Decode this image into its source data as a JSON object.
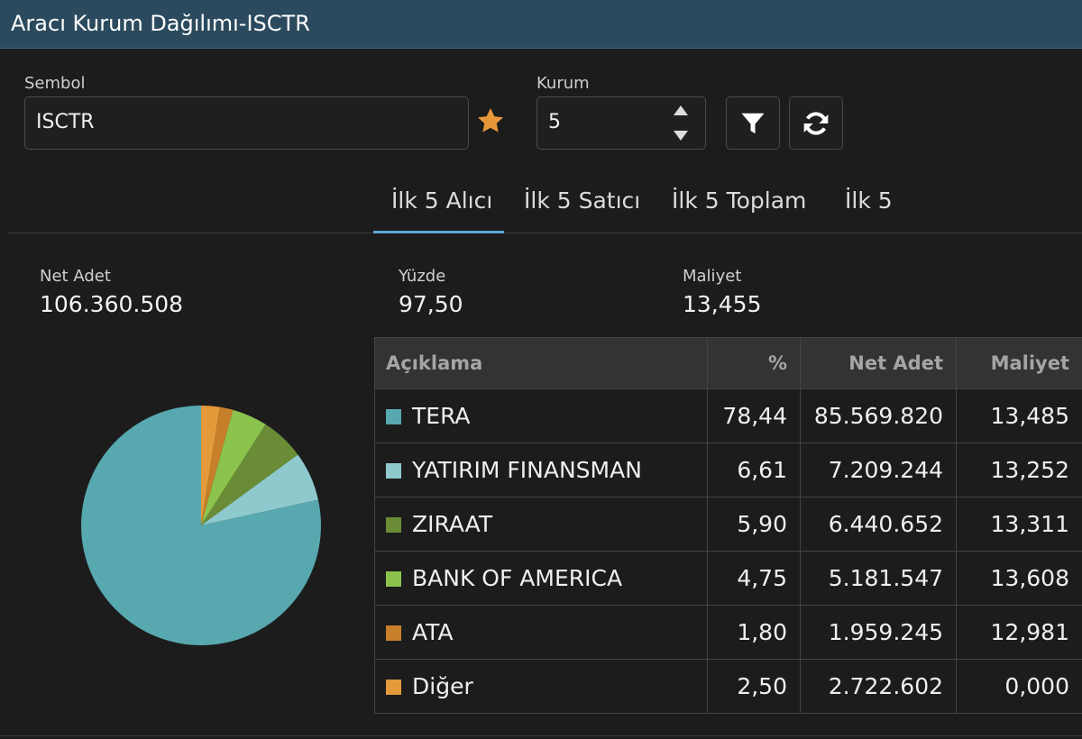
{
  "window": {
    "title": "Aracı Kurum Dağılımı-ISCTR"
  },
  "filters": {
    "symbol_label": "Sembol",
    "symbol_value": "ISCTR",
    "kurum_label": "Kurum",
    "kurum_value": "5"
  },
  "tabs": [
    {
      "label": "İlk 5 Alıcı",
      "active": true
    },
    {
      "label": "İlk 5 Satıcı",
      "active": false
    },
    {
      "label": "İlk 5 Toplam",
      "active": false
    },
    {
      "label": "İlk 5",
      "active": false
    }
  ],
  "summary": {
    "net_adet_label": "Net Adet",
    "net_adet_value": "106.360.508",
    "yuzde_label": "Yüzde",
    "yuzde_value": "97,50",
    "maliyet_label": "Maliyet",
    "maliyet_value": "13,455"
  },
  "table": {
    "headers": {
      "desc": "Açıklama",
      "pct": "%",
      "net": "Net Adet",
      "cost": "Maliyet"
    },
    "rows": [
      {
        "name": "TERA",
        "pct": "78,44",
        "net": "85.569.820",
        "cost": "13,485",
        "color": "#58a8af"
      },
      {
        "name": "YATIRIM FINANSMAN",
        "pct": "6,61",
        "net": "7.209.244",
        "cost": "13,252",
        "color": "#8ecacd"
      },
      {
        "name": "ZIRAAT",
        "pct": "5,90",
        "net": "6.440.652",
        "cost": "13,311",
        "color": "#6a8c36"
      },
      {
        "name": "BANK OF AMERICA",
        "pct": "4,75",
        "net": "5.181.547",
        "cost": "13,608",
        "color": "#8cc34d"
      },
      {
        "name": "ATA",
        "pct": "1,80",
        "net": "1.959.245",
        "cost": "12,981",
        "color": "#c87f2a"
      },
      {
        "name": "Diğer",
        "pct": "2,50",
        "net": "2.722.602",
        "cost": "0,000",
        "color": "#e29a3b"
      }
    ]
  },
  "chart_data": {
    "type": "pie",
    "categories": [
      "TERA",
      "YATIRIM FINANSMAN",
      "ZIRAAT",
      "BANK OF AMERICA",
      "ATA",
      "Diğer"
    ],
    "values": [
      78.44,
      6.61,
      5.9,
      4.75,
      1.8,
      2.5
    ],
    "colors": [
      "#58a8af",
      "#8ecacd",
      "#6a8c36",
      "#8cc34d",
      "#c87f2a",
      "#e29a3b"
    ],
    "start_angle": "top",
    "direction": "clockwise",
    "order": [
      "Diğer",
      "ATA",
      "BANK OF AMERICA",
      "ZIRAAT",
      "YATIRIM FINANSMAN",
      "TERA"
    ]
  },
  "colors": {
    "accent": "#5aa9d6",
    "star": "#e7963a",
    "titlebar": "#2b4a5e"
  },
  "icons": {
    "favorite": "star-icon",
    "spin_up": "caret-up-icon",
    "spin_down": "caret-down-icon",
    "filter": "filter-icon",
    "refresh": "refresh-icon"
  }
}
